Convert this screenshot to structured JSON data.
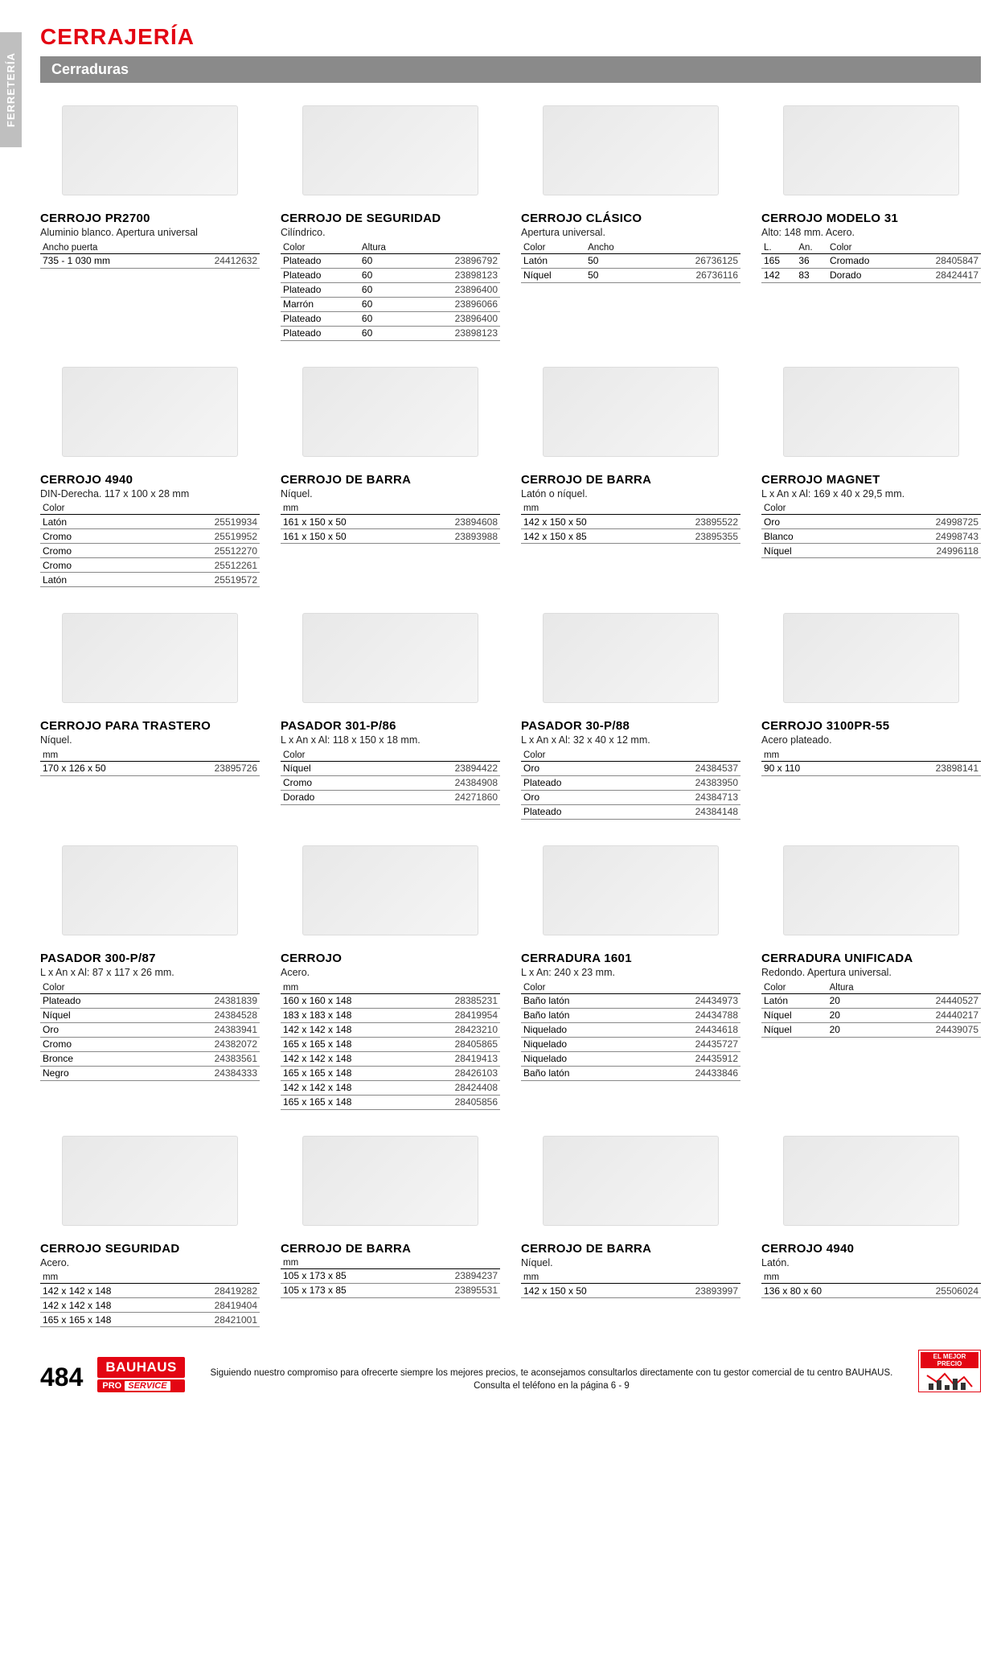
{
  "sideTab": "FERRETERÍA",
  "categoryTitle": "CERRAJERÍA",
  "subcategory": "Cerraduras",
  "pageNumber": "484",
  "logoMain": "BAUHAUS",
  "logoPro": "PRO",
  "logoService": "SERVICE",
  "badgeText": "EL MEJOR PRECIO",
  "footerText": "Siguiendo nuestro compromiso para ofrecerte siempre los mejores precios, te aconsejamos consultarlos directamente con tu gestor comercial de tu centro BAUHAUS. Consulta el teléfono en la página 6 - 9",
  "colors": {
    "brandRed": "#e30613",
    "barGrey": "#8a8a8a",
    "tabGrey": "#bfbfbf"
  },
  "products": [
    {
      "title": "CERROJO PR2700",
      "desc": "Aluminio blanco. Apertura universal",
      "headers": [
        "Ancho puerta",
        ""
      ],
      "rows": [
        [
          "735 - 1 030 mm",
          "24412632"
        ]
      ]
    },
    {
      "title": "CERROJO DE SEGURIDAD",
      "desc": "Cilíndrico.",
      "headers": [
        "Color",
        "Altura",
        ""
      ],
      "rows": [
        [
          "Plateado",
          "60",
          "23896792"
        ],
        [
          "Plateado",
          "60",
          "23898123"
        ],
        [
          "Plateado",
          "60",
          "23896400"
        ],
        [
          "Marrón",
          "60",
          "23896066"
        ],
        [
          "Plateado",
          "60",
          "23896400"
        ],
        [
          "Plateado",
          "60",
          "23898123"
        ]
      ]
    },
    {
      "title": "CERROJO CLÁSICO",
      "desc": "Apertura universal.",
      "headers": [
        "Color",
        "Ancho",
        ""
      ],
      "rows": [
        [
          "Latón",
          "50",
          "26736125"
        ],
        [
          "Níquel",
          "50",
          "26736116"
        ]
      ]
    },
    {
      "title": "CERROJO MODELO 31",
      "desc": "Alto: 148 mm. Acero.",
      "headers": [
        "L.",
        "An.",
        "Color",
        ""
      ],
      "rows": [
        [
          "165",
          "36",
          "Cromado",
          "28405847"
        ],
        [
          "142",
          "83",
          "Dorado",
          "28424417"
        ]
      ]
    },
    {
      "title": "CERROJO 4940",
      "desc": "DIN-Derecha. 117 x 100 x 28 mm",
      "headers": [
        "Color",
        ""
      ],
      "rows": [
        [
          "Latón",
          "25519934"
        ],
        [
          "Cromo",
          "25519952"
        ],
        [
          "Cromo",
          "25512270"
        ],
        [
          "Cromo",
          "25512261"
        ],
        [
          "Latón",
          "25519572"
        ]
      ]
    },
    {
      "title": "CERROJO DE BARRA",
      "desc": "Níquel.",
      "headers": [
        "mm",
        ""
      ],
      "rows": [
        [
          "161 x 150 x 50",
          "23894608"
        ],
        [
          "161 x 150 x 50",
          "23893988"
        ]
      ]
    },
    {
      "title": "CERROJO DE BARRA",
      "desc": "Latón o níquel.",
      "headers": [
        "mm",
        ""
      ],
      "rows": [
        [
          "142 x 150 x 50",
          "23895522"
        ],
        [
          "142 x 150 x 85",
          "23895355"
        ]
      ]
    },
    {
      "title": "CERROJO MAGNET",
      "desc": "L x An x Al: 169 x 40 x 29,5 mm.",
      "headers": [
        "Color",
        ""
      ],
      "rows": [
        [
          "Oro",
          "24998725"
        ],
        [
          "Blanco",
          "24998743"
        ],
        [
          "Níquel",
          "24996118"
        ]
      ]
    },
    {
      "title": "CERROJO PARA TRASTERO",
      "desc": "Níquel.",
      "headers": [
        "mm",
        ""
      ],
      "rows": [
        [
          "170 x 126 x 50",
          "23895726"
        ]
      ]
    },
    {
      "title": "PASADOR 301-P/86",
      "desc": "L x An x Al: 118 x 150 x 18 mm.",
      "headers": [
        "Color",
        ""
      ],
      "rows": [
        [
          "Níquel",
          "23894422"
        ],
        [
          "Cromo",
          "24384908"
        ],
        [
          "Dorado",
          "24271860"
        ]
      ]
    },
    {
      "title": "PASADOR 30-P/88",
      "desc": "L x An x Al: 32 x 40 x 12 mm.",
      "headers": [
        "Color",
        ""
      ],
      "rows": [
        [
          "Oro",
          "24384537"
        ],
        [
          "Plateado",
          "24383950"
        ],
        [
          "Oro",
          "24384713"
        ],
        [
          "Plateado",
          "24384148"
        ]
      ]
    },
    {
      "title": "CERROJO 3100PR-55",
      "desc": "Acero plateado.",
      "headers": [
        "mm",
        ""
      ],
      "rows": [
        [
          "90 x 110",
          "23898141"
        ]
      ]
    },
    {
      "title": "PASADOR 300-P/87",
      "desc": "L x An x Al: 87 x 117 x 26 mm.",
      "headers": [
        "Color",
        ""
      ],
      "rows": [
        [
          "Plateado",
          "24381839"
        ],
        [
          "Níquel",
          "24384528"
        ],
        [
          "Oro",
          "24383941"
        ],
        [
          "Cromo",
          "24382072"
        ],
        [
          "Bronce",
          "24383561"
        ],
        [
          "Negro",
          "24384333"
        ]
      ]
    },
    {
      "title": "CERROJO",
      "desc": "Acero.",
      "headers": [
        "mm",
        ""
      ],
      "rows": [
        [
          "160 x 160 x 148",
          "28385231"
        ],
        [
          "183 x 183 x 148",
          "28419954"
        ],
        [
          "142 x 142 x 148",
          "28423210"
        ],
        [
          "165 x 165 x 148",
          "28405865"
        ],
        [
          "142 x 142 x 148",
          "28419413"
        ],
        [
          "165 x 165 x 148",
          "28426103"
        ],
        [
          "142 x 142 x 148",
          "28424408"
        ],
        [
          "165 x 165 x 148",
          "28405856"
        ]
      ]
    },
    {
      "title": "CERRADURA 1601",
      "desc": "L x An: 240 x 23 mm.",
      "headers": [
        "Color",
        ""
      ],
      "rows": [
        [
          "Baño latón",
          "24434973"
        ],
        [
          "Baño latón",
          "24434788"
        ],
        [
          "Niquelado",
          "24434618"
        ],
        [
          "Niquelado",
          "24435727"
        ],
        [
          "Niquelado",
          "24435912"
        ],
        [
          "Baño latón",
          "24433846"
        ]
      ]
    },
    {
      "title": "CERRADURA UNIFICADA",
      "desc": "Redondo. Apertura universal.",
      "headers": [
        "Color",
        "Altura",
        ""
      ],
      "rows": [
        [
          "Latón",
          "20",
          "24440527"
        ],
        [
          "Níquel",
          "20",
          "24440217"
        ],
        [
          "Níquel",
          "20",
          "24439075"
        ]
      ]
    },
    {
      "title": "CERROJO SEGURIDAD",
      "desc": "Acero.",
      "headers": [
        "mm",
        ""
      ],
      "rows": [
        [
          "142 x 142 x 148",
          "28419282"
        ],
        [
          "142 x 142 x 148",
          "28419404"
        ],
        [
          "165 x 165 x 148",
          "28421001"
        ]
      ]
    },
    {
      "title": "CERROJO DE BARRA",
      "desc": "",
      "headers": [
        "mm",
        ""
      ],
      "rows": [
        [
          "105 x 173 x 85",
          "23894237"
        ],
        [
          "105 x 173 x 85",
          "23895531"
        ]
      ]
    },
    {
      "title": "CERROJO DE BARRA",
      "desc": "Níquel.",
      "headers": [
        "mm",
        ""
      ],
      "rows": [
        [
          "142 x 150 x 50",
          "23893997"
        ]
      ]
    },
    {
      "title": "CERROJO 4940",
      "desc": "Latón.",
      "headers": [
        "mm",
        ""
      ],
      "rows": [
        [
          "136 x 80 x 60",
          "25506024"
        ]
      ]
    }
  ]
}
